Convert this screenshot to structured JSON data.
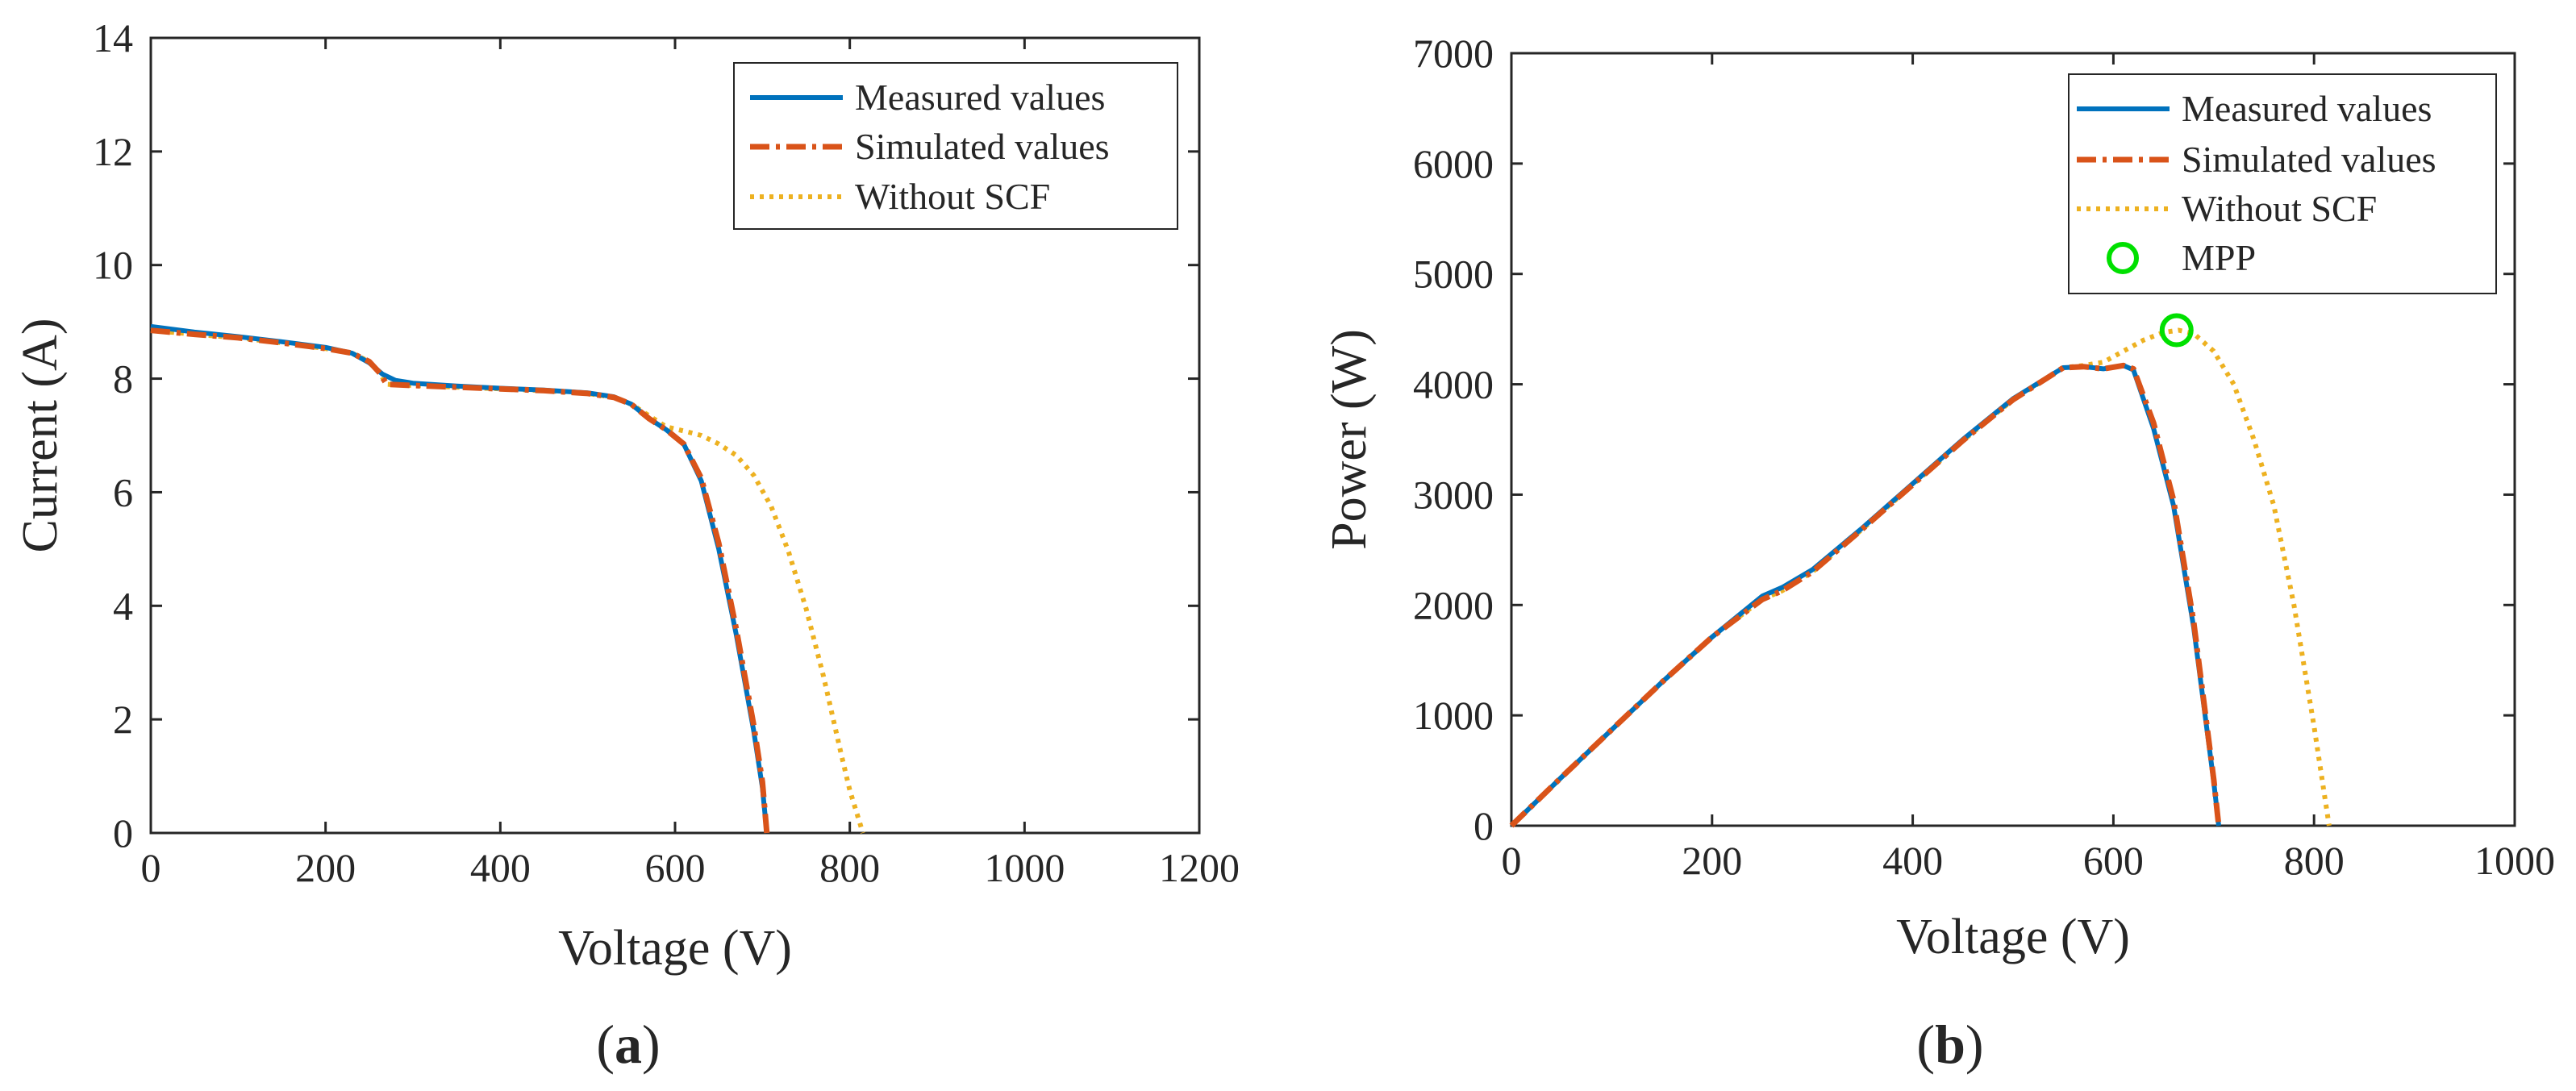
{
  "chart_data": [
    {
      "type": "line",
      "xlabel": "Voltage (V)",
      "ylabel": "Current (A)",
      "xlim": [
        0,
        1200
      ],
      "ylim": [
        0,
        14
      ],
      "xticks": [
        "0",
        "200",
        "400",
        "600",
        "800",
        "1000",
        "1200"
      ],
      "yticks": [
        "0",
        "2",
        "4",
        "6",
        "8",
        "10",
        "12",
        "14"
      ],
      "caption_letter": "a",
      "legend_position": "top-right",
      "series": [
        {
          "name": "Measured values",
          "color": "#0072BD",
          "style": "solid",
          "x": [
            0,
            50,
            100,
            150,
            200,
            230,
            250,
            265,
            280,
            300,
            350,
            400,
            450,
            500,
            530,
            550,
            570,
            590,
            610,
            630,
            650,
            670,
            690,
            700,
            705
          ],
          "y": [
            8.92,
            8.82,
            8.74,
            8.65,
            8.55,
            8.45,
            8.28,
            8.08,
            7.97,
            7.92,
            7.87,
            7.83,
            7.8,
            7.75,
            7.68,
            7.55,
            7.3,
            7.1,
            6.85,
            6.2,
            5.0,
            3.5,
            1.8,
            0.8,
            0.0
          ]
        },
        {
          "name": "Simulated values",
          "color": "#D95319",
          "style": "dashdot",
          "x": [
            0,
            50,
            100,
            150,
            200,
            230,
            250,
            262,
            270,
            300,
            350,
            400,
            450,
            500,
            530,
            550,
            570,
            590,
            610,
            630,
            650,
            670,
            690,
            700,
            705
          ],
          "y": [
            8.85,
            8.78,
            8.72,
            8.63,
            8.53,
            8.45,
            8.3,
            8.1,
            7.9,
            7.88,
            7.85,
            7.82,
            7.79,
            7.74,
            7.67,
            7.55,
            7.3,
            7.1,
            6.85,
            6.25,
            5.1,
            3.6,
            1.9,
            0.9,
            0.0
          ]
        },
        {
          "name": "Without SCF",
          "color": "#EDB120",
          "style": "dotted",
          "x": [
            0,
            50,
            100,
            150,
            200,
            230,
            250,
            262,
            270,
            300,
            350,
            400,
            450,
            500,
            530,
            550,
            570,
            590,
            610,
            630,
            650,
            670,
            690,
            710,
            730,
            750,
            770,
            790,
            800,
            810,
            815
          ],
          "y": [
            8.85,
            8.78,
            8.72,
            8.63,
            8.53,
            8.45,
            8.3,
            8.1,
            7.9,
            7.88,
            7.85,
            7.82,
            7.79,
            7.74,
            7.67,
            7.55,
            7.35,
            7.15,
            7.08,
            7.0,
            6.85,
            6.65,
            6.3,
            5.75,
            4.95,
            3.95,
            2.75,
            1.4,
            0.75,
            0.25,
            0.0
          ]
        }
      ]
    },
    {
      "type": "line",
      "xlabel": "Voltage (V)",
      "ylabel": "Power (W)",
      "xlim": [
        0,
        1000
      ],
      "ylim": [
        0,
        7000
      ],
      "xticks": [
        "0",
        "200",
        "400",
        "600",
        "800",
        "1000"
      ],
      "yticks": [
        "0",
        "1000",
        "2000",
        "3000",
        "4000",
        "5000",
        "6000",
        "7000"
      ],
      "caption_letter": "b",
      "legend_position": "top-right",
      "series": [
        {
          "name": "Measured values",
          "color": "#0072BD",
          "style": "solid",
          "x": [
            0,
            50,
            100,
            150,
            200,
            250,
            270,
            300,
            350,
            400,
            450,
            500,
            550,
            570,
            590,
            610,
            620,
            640,
            660,
            680,
            700,
            705
          ],
          "y": [
            0,
            440,
            870,
            1300,
            1710,
            2080,
            2160,
            2320,
            2700,
            3100,
            3500,
            3870,
            4150,
            4160,
            4140,
            4170,
            4130,
            3600,
            2900,
            1800,
            400,
            0
          ]
        },
        {
          "name": "Simulated values",
          "color": "#D95319",
          "style": "dashdot",
          "x": [
            0,
            50,
            100,
            150,
            200,
            250,
            270,
            300,
            350,
            400,
            450,
            500,
            550,
            570,
            590,
            610,
            620,
            640,
            660,
            680,
            700,
            705
          ],
          "y": [
            0,
            440,
            870,
            1300,
            1710,
            2050,
            2130,
            2300,
            2690,
            3090,
            3490,
            3860,
            4150,
            4160,
            4140,
            4170,
            4140,
            3650,
            2950,
            1850,
            420,
            0
          ]
        },
        {
          "name": "Without SCF",
          "color": "#EDB120",
          "style": "dotted",
          "x": [
            0,
            50,
            100,
            150,
            200,
            250,
            270,
            300,
            350,
            400,
            450,
            500,
            550,
            570,
            590,
            610,
            630,
            650,
            665,
            680,
            700,
            720,
            740,
            760,
            780,
            800,
            815
          ],
          "y": [
            0,
            440,
            870,
            1300,
            1710,
            2050,
            2130,
            2300,
            2690,
            3090,
            3490,
            3860,
            4150,
            4170,
            4200,
            4300,
            4400,
            4470,
            4490,
            4460,
            4300,
            4000,
            3500,
            2900,
            2000,
            900,
            0
          ]
        }
      ],
      "markers": [
        {
          "name": "MPP",
          "color": "#00E000",
          "x": 663,
          "y": 4490
        }
      ]
    }
  ]
}
